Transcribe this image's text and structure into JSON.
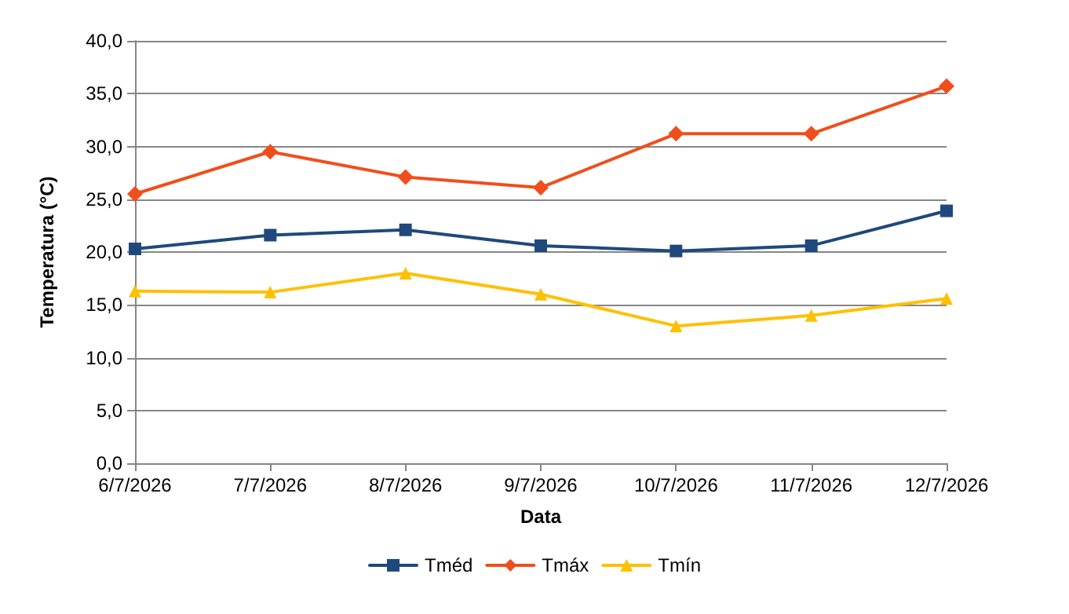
{
  "chart_data": {
    "type": "line",
    "xlabel": "Data",
    "ylabel": "Temperatura (°C)",
    "categories": [
      "6/7/2026",
      "7/7/2026",
      "8/7/2026",
      "9/7/2026",
      "10/7/2026",
      "11/7/2026",
      "12/7/2026"
    ],
    "series": [
      {
        "name": "Tméd",
        "color": "#1f497d",
        "marker": "square",
        "values": [
          20.3,
          21.6,
          22.1,
          20.6,
          20.1,
          20.6,
          23.9
        ]
      },
      {
        "name": "Tmáx",
        "color": "#f04e1c",
        "marker": "diamond",
        "values": [
          25.5,
          29.5,
          27.1,
          26.1,
          31.2,
          31.2,
          35.7
        ]
      },
      {
        "name": "Tmín",
        "color": "#ffc000",
        "marker": "triangle",
        "values": [
          16.3,
          16.2,
          18.0,
          16.0,
          13.0,
          14.0,
          15.6
        ]
      }
    ],
    "ylim": [
      0,
      40
    ],
    "yticks": [
      {
        "value": 0,
        "label": "0,0"
      },
      {
        "value": 5,
        "label": "5,0"
      },
      {
        "value": 10,
        "label": "10,0"
      },
      {
        "value": 15,
        "label": "15,0"
      },
      {
        "value": 20,
        "label": "20,0"
      },
      {
        "value": 25,
        "label": "25,0"
      },
      {
        "value": 30,
        "label": "30,0"
      },
      {
        "value": 35,
        "label": "35,0"
      },
      {
        "value": 40,
        "label": "40,0"
      }
    ],
    "grid": "y",
    "legend": "bottom",
    "line_style": "solid"
  }
}
